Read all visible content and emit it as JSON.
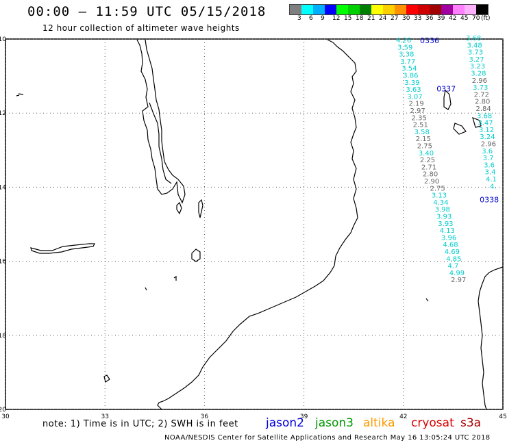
{
  "header": {
    "title": "00:00 – 11:59 UTC 05/15/2018",
    "subtitle": "12 hour collection of altimeter wave heights"
  },
  "colorbar": {
    "colors": [
      "#7f7f7f",
      "#00ffff",
      "#00b0ff",
      "#0000ff",
      "#00ff00",
      "#00d000",
      "#008000",
      "#ffff00",
      "#ffd000",
      "#ff9000",
      "#ff0000",
      "#d00000",
      "#a00000",
      "#a000a0",
      "#ff80ff",
      "#ffb0ff",
      "#000000"
    ],
    "labels": [
      "3",
      "6",
      "9",
      "12",
      "15",
      "18",
      "21",
      "24",
      "27",
      "30",
      "33",
      "36",
      "39",
      "42",
      "45",
      "70",
      "(ft)"
    ]
  },
  "axes": {
    "lon_ticks": [
      "30",
      "33",
      "36",
      "39",
      "42",
      "45"
    ],
    "lat_ticks": [
      "-10",
      "-12",
      "-14",
      "-16",
      "-18",
      "-20"
    ],
    "lon_range": [
      30,
      45
    ],
    "lat_range": [
      -20,
      -10
    ]
  },
  "passes": [
    {
      "label": "0336",
      "color": "#0000cc",
      "lon": 42.5,
      "lat": -10.0
    },
    {
      "label": "0337",
      "color": "#0000cc",
      "lon": 43.0,
      "lat": -11.3
    },
    {
      "label": "0338",
      "color": "#0000cc",
      "lon": 44.3,
      "lat": -14.3
    }
  ],
  "tracks": [
    {
      "name": "track-a",
      "points": [
        {
          "v": "4.26",
          "c": "#00cccc"
        },
        {
          "v": "3.59",
          "c": "#00cccc"
        },
        {
          "v": "3.38",
          "c": "#00cccc"
        },
        {
          "v": "3.77",
          "c": "#00cccc"
        },
        {
          "v": "3.54",
          "c": "#00cccc"
        },
        {
          "v": "3.86",
          "c": "#00cccc"
        },
        {
          "v": "3.39",
          "c": "#00cccc"
        },
        {
          "v": "3.63",
          "c": "#00cccc"
        },
        {
          "v": "3.07",
          "c": "#00cccc"
        },
        {
          "v": "2.19",
          "c": "#666666"
        },
        {
          "v": "2.97",
          "c": "#666666"
        },
        {
          "v": "2.35",
          "c": "#666666"
        },
        {
          "v": "2.51",
          "c": "#666666"
        },
        {
          "v": "3.58",
          "c": "#00cccc"
        },
        {
          "v": "2.15",
          "c": "#666666"
        },
        {
          "v": "2.75",
          "c": "#666666"
        },
        {
          "v": "3.40",
          "c": "#00cccc"
        },
        {
          "v": "2.25",
          "c": "#666666"
        },
        {
          "v": "2.71",
          "c": "#666666"
        },
        {
          "v": "2.80",
          "c": "#666666"
        },
        {
          "v": "2.90",
          "c": "#666666"
        },
        {
          "v": "2.75",
          "c": "#666666"
        },
        {
          "v": "3.13",
          "c": "#00cccc"
        },
        {
          "v": "4.34",
          "c": "#00cccc"
        },
        {
          "v": "3.98",
          "c": "#00cccc"
        },
        {
          "v": "3.93",
          "c": "#00cccc"
        },
        {
          "v": "3.93",
          "c": "#00cccc"
        },
        {
          "v": "4.13",
          "c": "#00cccc"
        },
        {
          "v": "3.96",
          "c": "#00cccc"
        },
        {
          "v": "4.68",
          "c": "#00cccc"
        },
        {
          "v": "4.69",
          "c": "#00cccc"
        },
        {
          "v": "4.85",
          "c": "#00cccc"
        },
        {
          "v": "4.7",
          "c": "#00cccc"
        },
        {
          "v": "4.99",
          "c": "#00cccc"
        },
        {
          "v": "2.97",
          "c": "#666666"
        }
      ]
    },
    {
      "name": "track-b",
      "points": [
        {
          "v": "3.68",
          "c": "#00cccc"
        },
        {
          "v": "3.48",
          "c": "#00cccc"
        },
        {
          "v": "3.73",
          "c": "#00cccc"
        },
        {
          "v": "3.27",
          "c": "#00cccc"
        },
        {
          "v": "3.23",
          "c": "#00cccc"
        },
        {
          "v": "3.28",
          "c": "#00cccc"
        },
        {
          "v": "2.96",
          "c": "#666666"
        },
        {
          "v": "3.73",
          "c": "#00cccc"
        },
        {
          "v": "2.72",
          "c": "#666666"
        },
        {
          "v": "2.80",
          "c": "#666666"
        },
        {
          "v": "2.84",
          "c": "#666666"
        },
        {
          "v": "3.68",
          "c": "#00cccc"
        },
        {
          "v": "3.47",
          "c": "#00cccc"
        },
        {
          "v": "3.12",
          "c": "#00cccc"
        },
        {
          "v": "3.24",
          "c": "#00cccc"
        },
        {
          "v": "2.96",
          "c": "#666666"
        },
        {
          "v": "3.6",
          "c": "#00cccc"
        },
        {
          "v": "3.7",
          "c": "#00cccc"
        },
        {
          "v": "3.6",
          "c": "#00cccc"
        },
        {
          "v": "3.4",
          "c": "#00cccc"
        },
        {
          "v": "4.1",
          "c": "#00cccc"
        },
        {
          "v": "4.",
          "c": "#00cccc"
        }
      ]
    }
  ],
  "note": "note: 1) Time is in UTC; 2) SWH is in feet",
  "legend": [
    {
      "label": "jason2",
      "color": "#0000dd"
    },
    {
      "label": "jason3",
      "color": "#009900"
    },
    {
      "label": "altika",
      "color": "#ff9900"
    },
    {
      "label": "cryosat",
      "color": "#dd0000"
    },
    {
      "label": "s3a",
      "color": "#aa0000"
    }
  ],
  "credit": "NOAA/NESDIS Center for Satellite Applications and Research   May 16 13:05:24 UTC 2018"
}
